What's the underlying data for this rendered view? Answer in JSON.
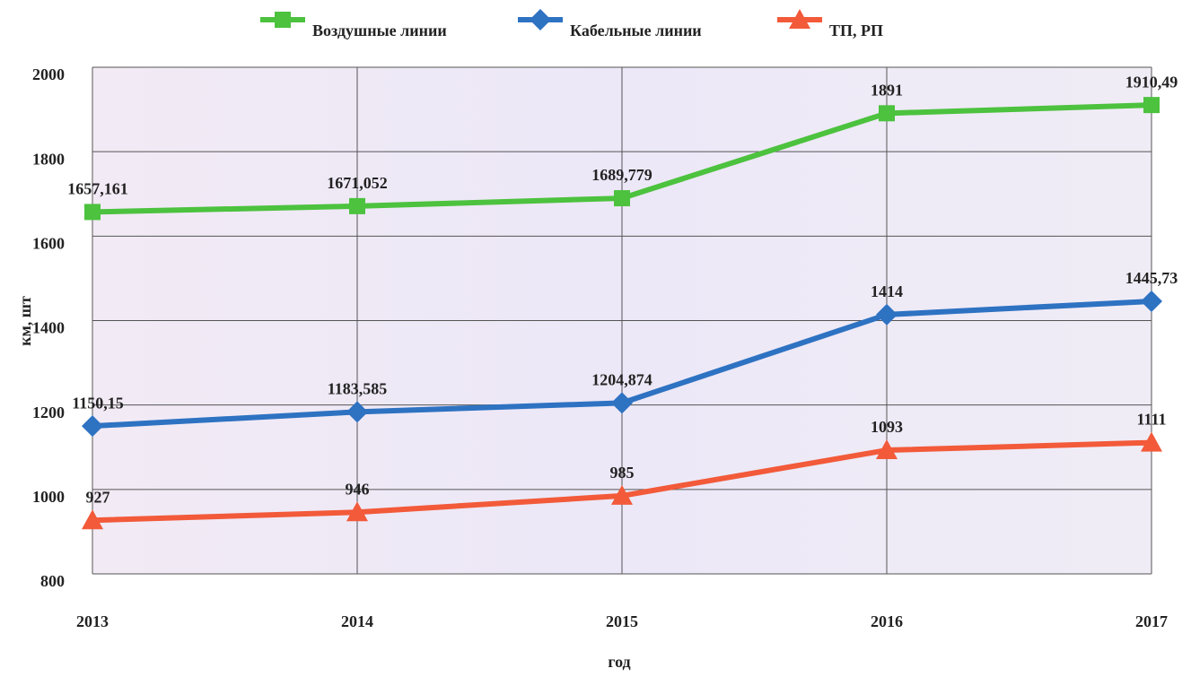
{
  "chart_data": {
    "type": "line",
    "categories": [
      "2013",
      "2014",
      "2015",
      "2016",
      "2017"
    ],
    "series": [
      {
        "name": "Воздушные линии",
        "color": "#4cc23e",
        "marker": "square",
        "values": [
          1657.161,
          1671.052,
          1689.779,
          1891,
          1910.49
        ],
        "value_labels": [
          "1657,161",
          "1671,052",
          "1689,779",
          "1891",
          "1910,49"
        ]
      },
      {
        "name": "Кабельные линии",
        "color": "#2e72c2",
        "marker": "diamond",
        "values": [
          1150.15,
          1183.585,
          1204.874,
          1414,
          1445.73
        ],
        "value_labels": [
          "1150,15",
          "1183,585",
          "1204,874",
          "1414",
          "1445,73"
        ]
      },
      {
        "name": "ТП, РП",
        "color": "#f25a3a",
        "marker": "triangle",
        "values": [
          927,
          946,
          985,
          1093,
          1111
        ],
        "value_labels": [
          "927",
          "946",
          "985",
          "1093",
          "1111"
        ]
      }
    ],
    "x_label": "год",
    "y_label": "км, шт",
    "ylim": [
      800,
      2000
    ],
    "yticks": [
      800,
      1000,
      1200,
      1400,
      1600,
      1800,
      2000
    ],
    "grid": true,
    "legend": "top"
  }
}
